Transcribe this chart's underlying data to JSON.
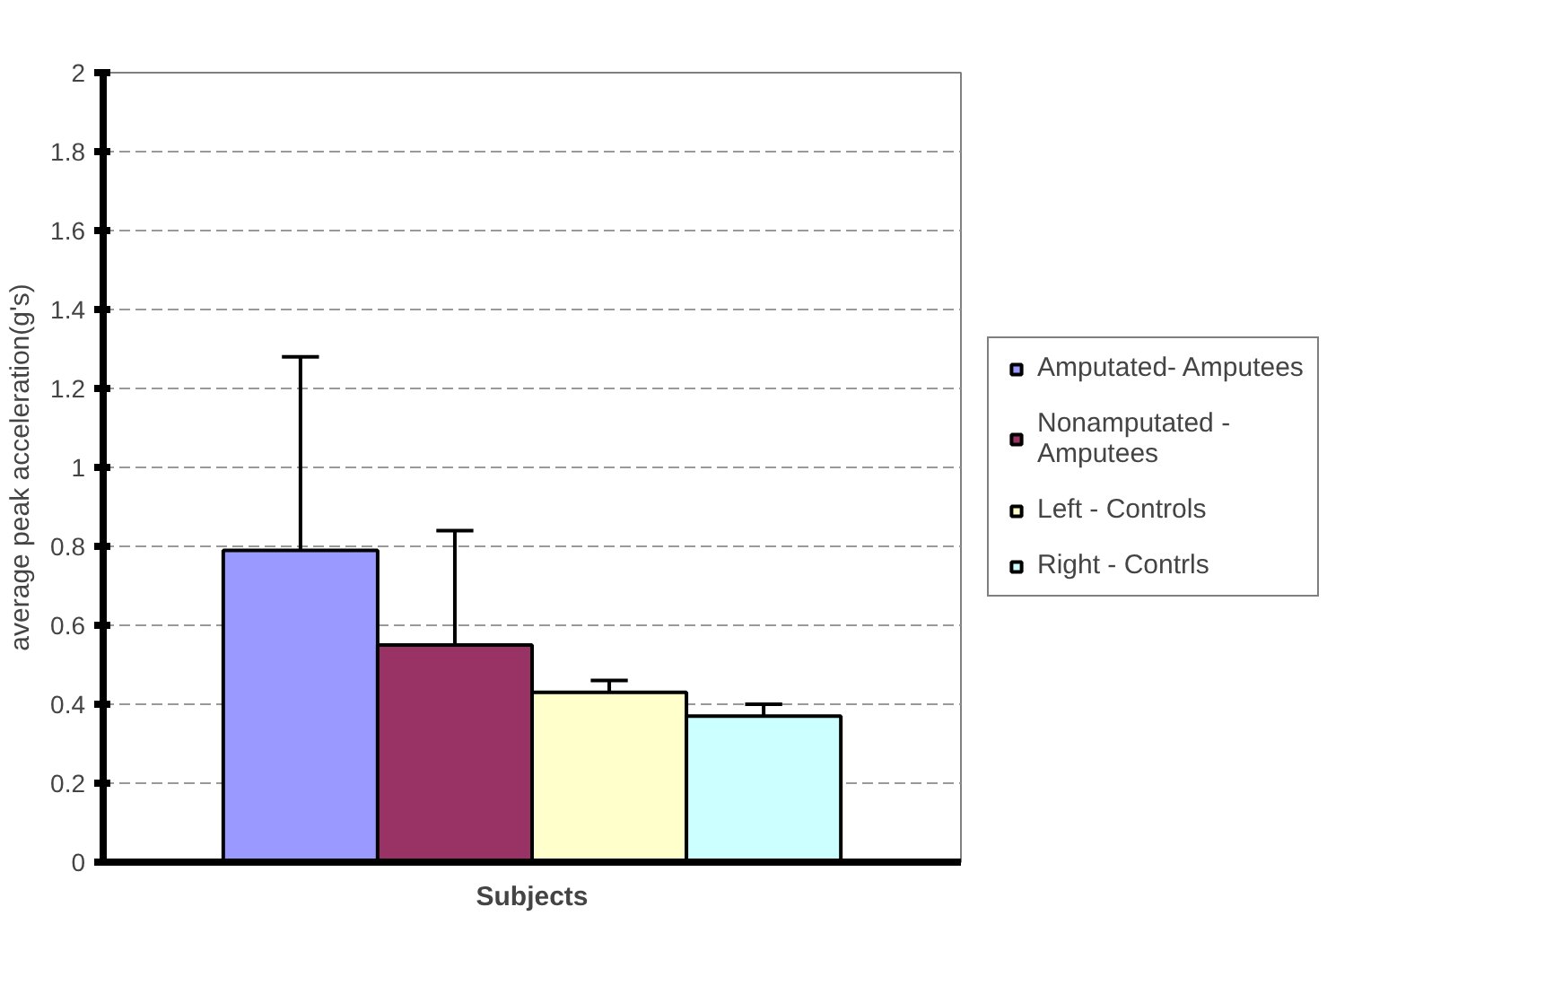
{
  "chart_data": {
    "type": "bar",
    "xlabel": "Subjects",
    "ylabel": "average peak acceleration(g's)",
    "categories": [
      null
    ],
    "series": [
      {
        "name": "Amputated- Amputees",
        "color": "#9999ff",
        "values": [
          0.79
        ],
        "errors": [
          [
            0.79,
            1.28
          ]
        ]
      },
      {
        "name": "Nonamputated - Amputees",
        "color": "#993366",
        "values": [
          0.55
        ],
        "errors": [
          [
            0.55,
            0.84
          ]
        ]
      },
      {
        "name": "Left - Controls",
        "color": "#ffffcc",
        "values": [
          0.43
        ],
        "errors": [
          [
            0.43,
            0.46
          ]
        ]
      },
      {
        "name": "Right - Contrls",
        "color": "#ccffff",
        "values": [
          0.37
        ],
        "errors": [
          [
            0.37,
            0.4
          ]
        ]
      }
    ],
    "ylim": [
      0,
      2
    ],
    "yticks": [
      0,
      0.2,
      0.4,
      0.6,
      0.8,
      1,
      1.2,
      1.4,
      1.6,
      1.8,
      2
    ],
    "grid": "y",
    "legend": "right"
  }
}
